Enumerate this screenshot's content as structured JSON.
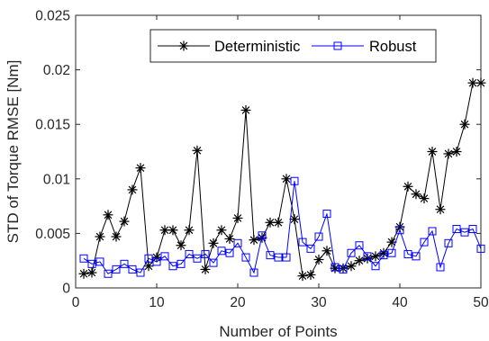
{
  "chart_data": {
    "type": "line",
    "xlabel": "Number of Points",
    "ylabel": "STD of Torque RMSE [Nm]",
    "xlim": [
      0,
      50
    ],
    "ylim": [
      0,
      0.025
    ],
    "x_ticks": [
      "0",
      "10",
      "20",
      "30",
      "40",
      "50"
    ],
    "y_ticks": [
      "0",
      "0.005",
      "0.01",
      "0.015",
      "0.02",
      "0.025"
    ],
    "grid": false,
    "legend_placement": "top-center",
    "x": [
      1,
      2,
      3,
      4,
      5,
      6,
      7,
      8,
      9,
      10,
      11,
      12,
      13,
      14,
      15,
      16,
      17,
      18,
      19,
      20,
      21,
      22,
      23,
      24,
      25,
      26,
      27,
      28,
      29,
      30,
      31,
      32,
      33,
      34,
      35,
      36,
      37,
      38,
      39,
      40,
      41,
      42,
      43,
      44,
      45,
      46,
      47,
      48,
      49,
      50
    ],
    "series": [
      {
        "name": "Deterministic",
        "color": "#000000",
        "marker": "asterisk",
        "values": [
          0.0013,
          0.0014,
          0.0047,
          0.0067,
          0.0047,
          0.0061,
          0.009,
          0.011,
          0.002,
          0.0028,
          0.0053,
          0.0053,
          0.0039,
          0.0053,
          0.0126,
          0.0017,
          0.0041,
          0.0053,
          0.0045,
          0.0064,
          0.0163,
          0.0044,
          0.0046,
          0.006,
          0.006,
          0.01,
          0.0063,
          0.0011,
          0.0012,
          0.0026,
          0.0034,
          0.0018,
          0.0018,
          0.002,
          0.0025,
          0.0027,
          0.0029,
          0.0032,
          0.0042,
          0.0056,
          0.0093,
          0.0086,
          0.0082,
          0.0125,
          0.0072,
          0.0123,
          0.0125,
          0.015,
          0.0188,
          0.0188
        ]
      },
      {
        "name": "Robust",
        "color": "#0000ff",
        "marker": "square",
        "values": [
          0.0027,
          0.0022,
          0.0024,
          0.0013,
          0.0017,
          0.0022,
          0.0017,
          0.0014,
          0.0027,
          0.0024,
          0.0029,
          0.002,
          0.0022,
          0.0031,
          0.0027,
          0.0031,
          0.0023,
          0.0034,
          0.0032,
          0.0041,
          0.0028,
          0.0014,
          0.0048,
          0.003,
          0.0028,
          0.0028,
          0.0098,
          0.0042,
          0.0036,
          0.0047,
          0.0068,
          0.0019,
          0.0017,
          0.0032,
          0.0039,
          0.0029,
          0.002,
          0.003,
          0.0032,
          0.0053,
          0.0031,
          0.0029,
          0.0042,
          0.0052,
          0.0019,
          0.0041,
          0.0054,
          0.0051,
          0.0054,
          0.0036
        ]
      }
    ]
  }
}
